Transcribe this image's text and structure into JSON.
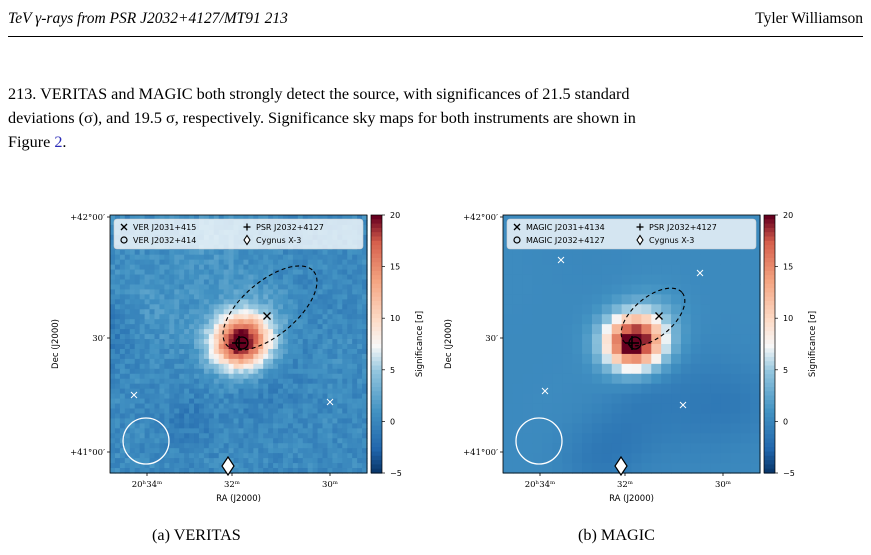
{
  "header": {
    "left": "TeV γ-rays from PSR J2032+4127/MT91 213",
    "right": "Tyler Williamson"
  },
  "paragraph": {
    "line1": "213. VERITAS and MAGIC both strongly detect the source, with significances of 21.5 standard",
    "line2": "deviations (σ), and 19.5 σ, respectively. Significance sky maps for both instruments are shown in",
    "line3_pre": "Figure ",
    "line3_link": "2",
    "line3_post": "."
  },
  "chart_data": [
    {
      "type": "heatmap",
      "caption": "(a) VERITAS",
      "xlabel": "RA (J2000)",
      "ylabel": "Dec (J2000)",
      "xticks": [
        "20ʰ34ᵐ",
        "32ᵐ",
        "30ᵐ"
      ],
      "yticks": [
        "+42°00′",
        "30′",
        "+41°00′"
      ],
      "colorbar": {
        "label": "Significance [σ]",
        "ticks": [
          -5,
          0,
          5,
          10,
          15,
          20
        ],
        "range": [
          -5,
          20
        ]
      },
      "legend": [
        "VER J2031+415",
        "VER J2032+414",
        "PSR J2032+4127",
        "Cygnus X-3"
      ],
      "style": "pixel"
    },
    {
      "type": "heatmap",
      "caption": "(b) MAGIC",
      "xlabel": "RA (J2000)",
      "ylabel": "Dec (J2000)",
      "xticks": [
        "20ʰ34ᵐ",
        "32ᵐ",
        "30ᵐ"
      ],
      "yticks": [
        "+42°00′",
        "30′",
        "+41°00′"
      ],
      "colorbar": {
        "label": "Significance [σ]",
        "ticks": [
          -5,
          0,
          5,
          10,
          15,
          20
        ],
        "range": [
          -5,
          20
        ]
      },
      "legend": [
        "MAGIC J2031+4134",
        "MAGIC J2032+4127",
        "PSR J2032+4127",
        "Cygnus X-3"
      ],
      "style": "smooth"
    }
  ]
}
